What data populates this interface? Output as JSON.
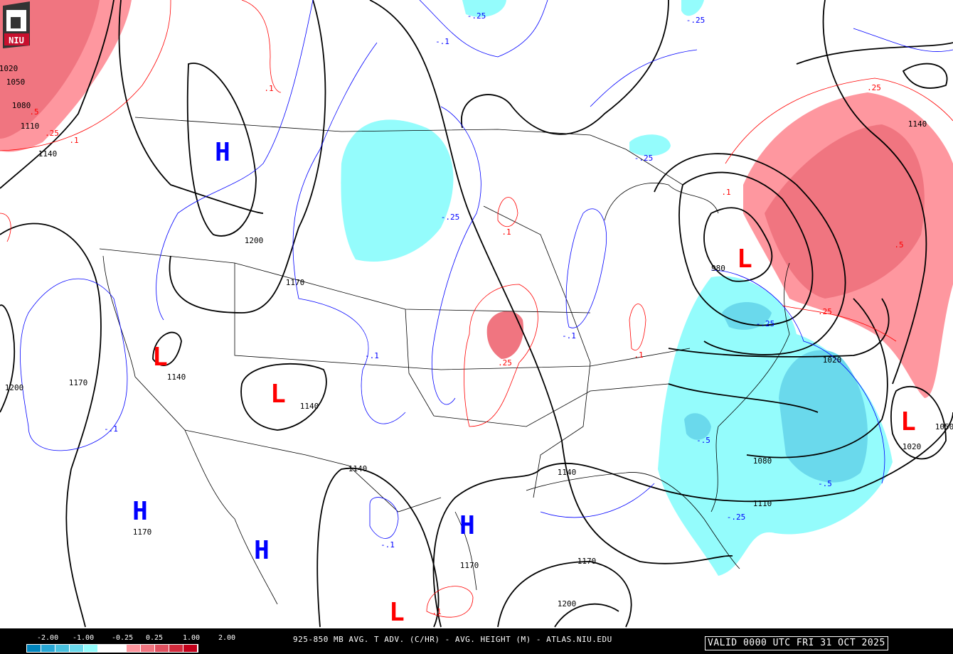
{
  "map": {
    "title": "925-850 MB AVG. T ADV. (C/HR) - AVG. HEIGHT (M) - ATLAS.NIU.EDU",
    "valid": "VALID 0000 UTC FRI 31 OCT 2025",
    "logo_text": "NIU",
    "legend": {
      "ticks": [
        "-2.00",
        "-1.00",
        "-0.25",
        "0.25",
        "1.00",
        "2.00"
      ],
      "colors": [
        "#0084bd",
        "#27a6d4",
        "#48c0de",
        "#6ad9ec",
        "#94fcfc",
        "#ffffff",
        "#ffffff",
        "#fe979f",
        "#f07580",
        "#e0505f",
        "#d22a3c",
        "#c1001a"
      ]
    },
    "colors": {
      "cold": "#94fcfc",
      "cold2": "#6ad9ec",
      "warm": "#fe979f",
      "warm2": "#f07580",
      "height_contour": "#000000",
      "cold_contour": "#0000ff",
      "warm_contour": "#ff0000"
    },
    "highs": [
      "H",
      "H",
      "H",
      "H"
    ],
    "lows": [
      "L",
      "L",
      "L",
      "L",
      "L"
    ],
    "height_labels": [
      "1200",
      "1170",
      "1140",
      "1140",
      "1200",
      "1170",
      "1170",
      "1140",
      "1140",
      "1170",
      "1200",
      "1170",
      "1080",
      "1110",
      "1020",
      "1020",
      "1050",
      "1140",
      "980",
      "1140",
      "1110",
      "1080",
      "1050",
      "1020"
    ],
    "tadv_labels": [
      ".1",
      "-.25",
      "-.1",
      "-.25",
      "-.25",
      ".1",
      "-.1",
      ".25",
      "-.1",
      ".1",
      ".25",
      ".5",
      ".25",
      "-.25",
      "-.1",
      ".1",
      "-.5",
      "-.5",
      "-.25",
      "-.1",
      ".1",
      ".5",
      ".25",
      ".1",
      "-.25"
    ]
  }
}
